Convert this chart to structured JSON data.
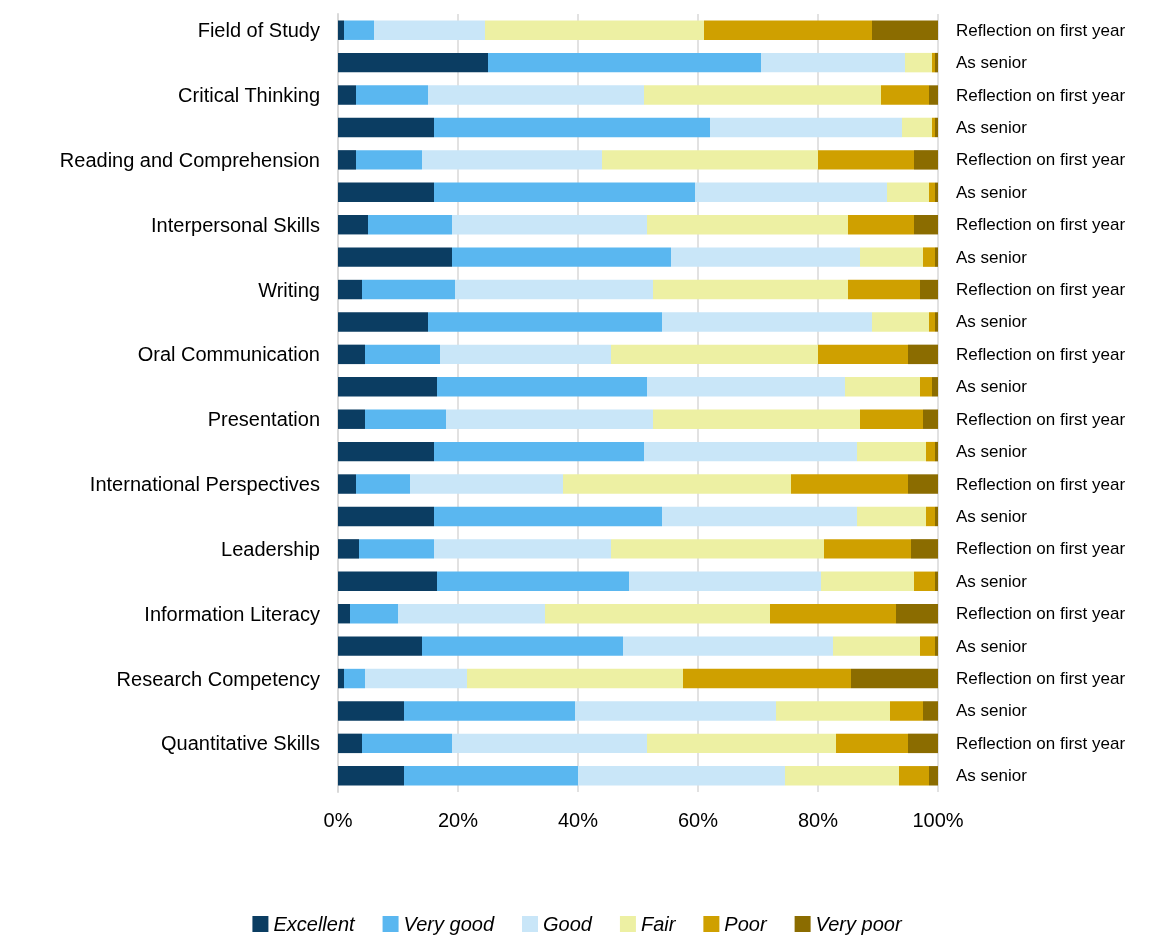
{
  "chart_data": {
    "type": "bar",
    "orientation": "horizontal",
    "stacked": true,
    "categories": [
      "Field of Study",
      null,
      "Critical Thinking",
      null,
      "Reading and Comprehension",
      null,
      "Interpersonal Skills",
      null,
      "Writing",
      null,
      "Oral Communication",
      null,
      "Presentation",
      null,
      "International Perspectives",
      null,
      "Leadership",
      null,
      "Information Literacy",
      null,
      "Research Competency",
      null,
      "Quantitative Skills",
      null
    ],
    "y2_categories": [
      "Reflection on first year",
      "As senior",
      "Reflection on first year",
      "As senior",
      "Reflection on first year",
      "As senior",
      "Reflection on first year",
      "As senior",
      "Reflection on first year",
      "As senior",
      "Reflection on first year",
      "As senior",
      "Reflection on first year",
      "As senior",
      "Reflection on first year",
      "As senior",
      "Reflection on first year",
      "As senior",
      "Reflection on first year",
      "As senior",
      "Reflection on first year",
      "As senior",
      "Reflection on first year",
      "As senior"
    ],
    "series": [
      {
        "name": "Excellent",
        "color": "#0b3d62",
        "values": [
          1,
          25,
          3,
          16,
          3,
          16,
          5,
          19,
          4,
          15,
          4.5,
          16.5,
          4.5,
          16,
          3,
          16,
          3.5,
          16.5,
          2,
          14,
          1,
          11,
          4,
          11
        ]
      },
      {
        "name": "Very good",
        "color": "#5ab7f0",
        "values": [
          5,
          45.5,
          12,
          46,
          11,
          43.5,
          14,
          36.5,
          15.5,
          39,
          12.5,
          35,
          13.5,
          35,
          9,
          38,
          12.5,
          32,
          8,
          33.5,
          3.5,
          28.5,
          15,
          29
        ]
      },
      {
        "name": "Good",
        "color": "#c9e6f8",
        "values": [
          18.5,
          24,
          36,
          32,
          30,
          32,
          32.5,
          31.5,
          33,
          35,
          28.5,
          33,
          34.5,
          35.5,
          25.5,
          32.5,
          29.5,
          32,
          24.5,
          35,
          17,
          33.5,
          32.5,
          34.5
        ]
      },
      {
        "name": "Fair",
        "color": "#edf0a3",
        "values": [
          36.5,
          4.5,
          39.5,
          5,
          36,
          7,
          33.5,
          10.5,
          32.5,
          9.5,
          34.5,
          12.5,
          34.5,
          11.5,
          38,
          11.5,
          35.5,
          15.5,
          37.5,
          14.5,
          36,
          19,
          31.5,
          19
        ]
      },
      {
        "name": "Poor",
        "color": "#cfa000",
        "values": [
          28,
          0.5,
          8,
          0.5,
          16,
          1,
          11,
          2,
          12,
          1,
          15,
          2,
          10.5,
          1.5,
          19.5,
          1.5,
          14.5,
          3.5,
          21,
          2.5,
          28,
          5.5,
          12,
          5
        ]
      },
      {
        "name": "Very poor",
        "color": "#8b6c00",
        "values": [
          11,
          0.5,
          1.5,
          0.5,
          4,
          0.5,
          4,
          0.5,
          3,
          0.5,
          5,
          1,
          2.5,
          0.5,
          5,
          0.5,
          4.5,
          0.5,
          7,
          0.5,
          14.5,
          2.5,
          5,
          1.5
        ]
      }
    ],
    "xlim": [
      0,
      100
    ],
    "xticks": [
      {
        "value": 0,
        "label": "0%"
      },
      {
        "value": 20,
        "label": "20%"
      },
      {
        "value": 40,
        "label": "40%"
      },
      {
        "value": 60,
        "label": "60%"
      },
      {
        "value": 80,
        "label": "80%"
      },
      {
        "value": 100,
        "label": "100%"
      }
    ],
    "grid": "x",
    "legend": "bottom"
  }
}
